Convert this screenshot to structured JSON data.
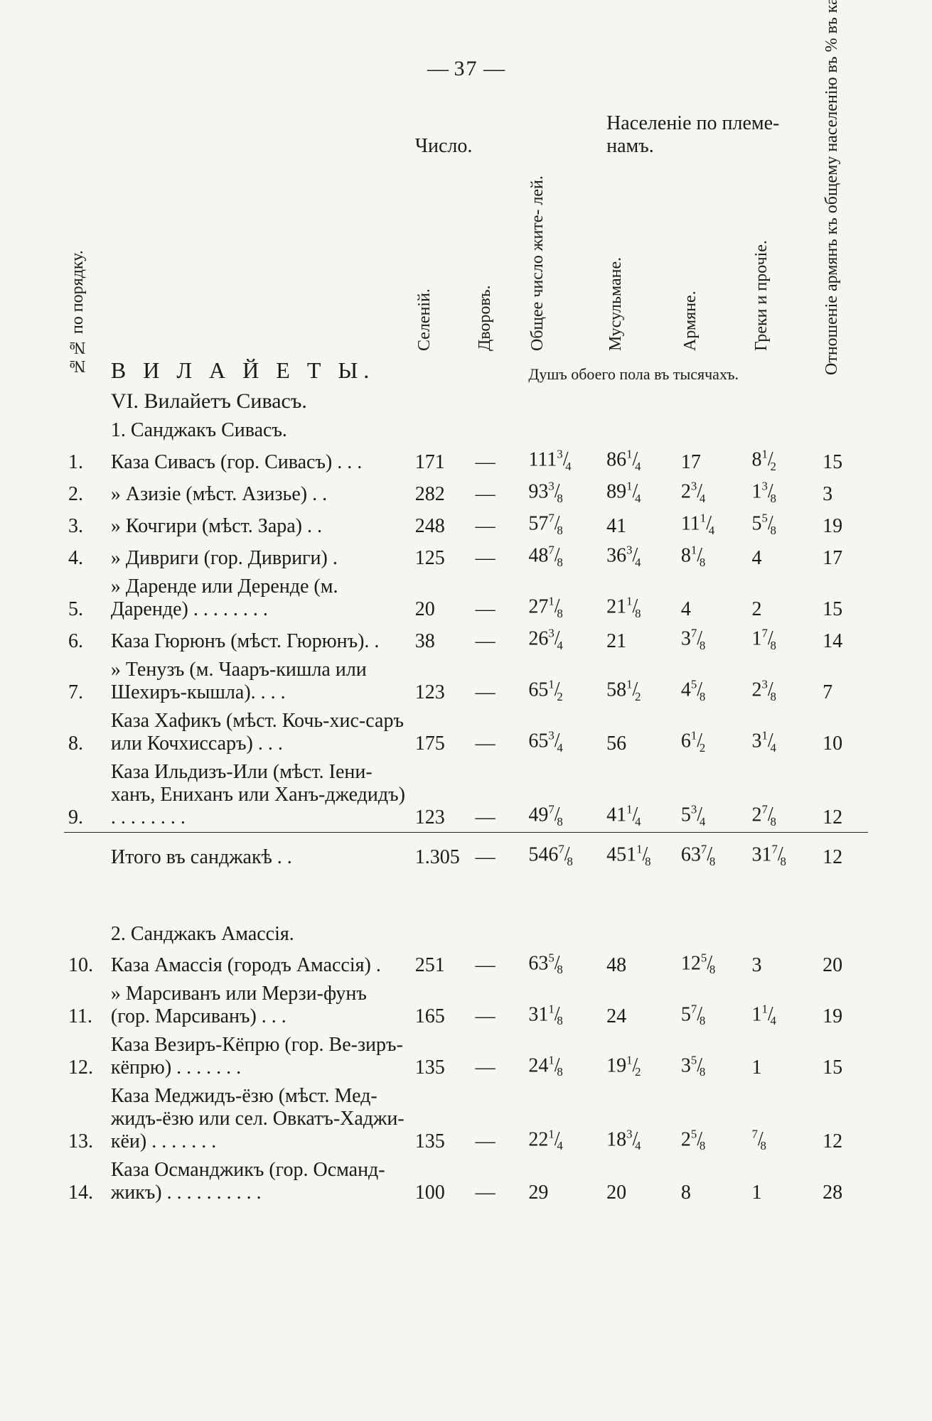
{
  "page_number": "37",
  "headers": {
    "num_col": "№№ по порядку.",
    "vilayets": "В И Л А Й Е Т Ы.",
    "chislo": "Число.",
    "naselenie": "Населеніе по племе-\nнамъ.",
    "sel": "Селеній.",
    "dvor": "Дворовъ.",
    "pop": "Общее число жите-\nлей.",
    "mus": "Мусульмане.",
    "arm": "Армяне.",
    "gr": "Греки и прочіе.",
    "ratio": "Отношеніе армянъ къ\nобщему населенію въ %\nвъ казахъ и санджакѣ.",
    "souls_note": "Душъ обоего пола въ тысячахъ."
  },
  "vilayet_title": "VI. Вилайетъ Сивасъ.",
  "sandjak1": {
    "title": "1. Санджакъ Сивасъ.",
    "rows": [
      {
        "n": "1.",
        "name": "Каза Сивасъ (гор. Сивасъ) . . .",
        "sel": "171",
        "dvor": "—",
        "pop": "111¾",
        "mus": "86¼",
        "arm": "17",
        "gr": "8½",
        "rat": "15"
      },
      {
        "n": "2.",
        "name": "»   Азизіе (мѣст. Азизье) . .",
        "sel": "282",
        "dvor": "—",
        "pop": "93⅜",
        "mus": "89¼",
        "arm": "2¾",
        "gr": "1⅜",
        "rat": "3"
      },
      {
        "n": "3.",
        "name": "»   Кочгири (мѣст. Зара) . .",
        "sel": "248",
        "dvor": "—",
        "pop": "57⅞",
        "mus": "41",
        "arm": "11¼",
        "gr": "5⅝",
        "rat": "19"
      },
      {
        "n": "4.",
        "name": "»   Дивриги (гор. Дивриги) .",
        "sel": "125",
        "dvor": "—",
        "pop": "48⅞",
        "mus": "36¾",
        "arm": "8⅛",
        "gr": "4",
        "rat": "17"
      },
      {
        "n": "5.",
        "name": "»   Даренде или Деренде (м. Даренде) . . . . . . . .",
        "sel": "20",
        "dvor": "—",
        "pop": "27⅛",
        "mus": "21⅛",
        "arm": "4",
        "gr": "2",
        "rat": "15"
      },
      {
        "n": "6.",
        "name": "Каза Гюрюнъ (мѣст. Гюрюнъ). .",
        "sel": "38",
        "dvor": "—",
        "pop": "26¾",
        "mus": "21",
        "arm": "3⅞",
        "gr": "1⅞",
        "rat": "14"
      },
      {
        "n": "7.",
        "name": "»   Тенузъ (м. Чааръ-кишла или Шехиръ-кышла). . . .",
        "sel": "123",
        "dvor": "—",
        "pop": "65½",
        "mus": "58½",
        "arm": "4⅝",
        "gr": "2⅜",
        "rat": "7"
      },
      {
        "n": "8.",
        "name": "Каза Хафикъ (мѣст. Кочь-хис-саръ или Кочхиссаръ) . . .",
        "sel": "175",
        "dvor": "—",
        "pop": "65¾",
        "mus": "56",
        "arm": "6½",
        "gr": "3¼",
        "rat": "10"
      },
      {
        "n": "9.",
        "name": "Каза Ильдизъ-Или (мѣст. Іени-ханъ, Ениханъ или Ханъ-джедидъ) . . . . . . . .",
        "sel": "123",
        "dvor": "—",
        "pop": "49⅞",
        "mus": "41¼",
        "arm": "5¾",
        "gr": "2⅞",
        "rat": "12"
      }
    ],
    "totals": {
      "name": "Итого въ санджакѣ . .",
      "sel": "1.305",
      "dvor": "—",
      "pop": "546⅞",
      "mus": "451⅛",
      "arm": "63⅞",
      "gr": "31⅞",
      "rat": "12"
    }
  },
  "sandjak2": {
    "title": "2. Санджакъ Амассія.",
    "rows": [
      {
        "n": "10.",
        "name": "Каза Амассія (городъ Амассія) .",
        "sel": "251",
        "dvor": "—",
        "pop": "63⅝",
        "mus": "48",
        "arm": "12⅝",
        "gr": "3",
        "rat": "20"
      },
      {
        "n": "11.",
        "name": "»   Марсиванъ или Мерзи-фунъ (гор. Марсиванъ) . . .",
        "sel": "165",
        "dvor": "—",
        "pop": "31⅛",
        "mus": "24",
        "arm": "5⅞",
        "gr": "1¼",
        "rat": "19"
      },
      {
        "n": "12.",
        "name": "Каза Везиръ-Кёпрю (гор. Ве-зиръ-кёпрю) . . . . . . .",
        "sel": "135",
        "dvor": "—",
        "pop": "24⅛",
        "mus": "19½",
        "arm": "3⅝",
        "gr": "1",
        "rat": "15"
      },
      {
        "n": "13.",
        "name": "Каза Меджидъ-ёзю (мѣст. Мед-жидъ-ёзю или сел. Овкатъ-Хаджи-кёи) . . . . . . .",
        "sel": "135",
        "dvor": "—",
        "pop": "22¼",
        "mus": "18¾",
        "arm": "2⅝",
        "gr": "⅞",
        "rat": "12"
      },
      {
        "n": "14.",
        "name": "Каза Османджикъ (гор. Османд-жикъ) . . . . . . . . . .",
        "sel": "100",
        "dvor": "—",
        "pop": "29",
        "mus": "20",
        "arm": "8",
        "gr": "1",
        "rat": "28"
      }
    ]
  }
}
